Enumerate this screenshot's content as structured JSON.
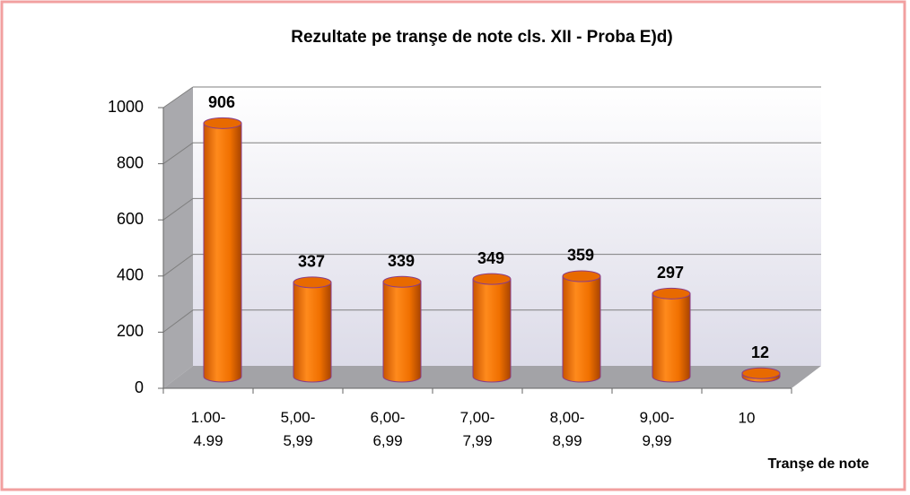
{
  "chart_data": {
    "type": "bar",
    "title": "Rezultate pe tranşe de note cls. XII - Proba E)d)",
    "x_label": "Tranşe de note",
    "categories": [
      "1.00-4.99",
      "5,00-5,99",
      "6,00-6,99",
      "7,00-7,99",
      "8,00-8,99",
      "9,00-9,99",
      "10"
    ],
    "values": [
      906,
      337,
      339,
      349,
      359,
      297,
      12
    ],
    "color": "#f07000",
    "ylim": [
      0,
      1000
    ],
    "yticks": [
      0,
      200,
      400,
      600,
      800,
      1000
    ],
    "grid": true
  }
}
